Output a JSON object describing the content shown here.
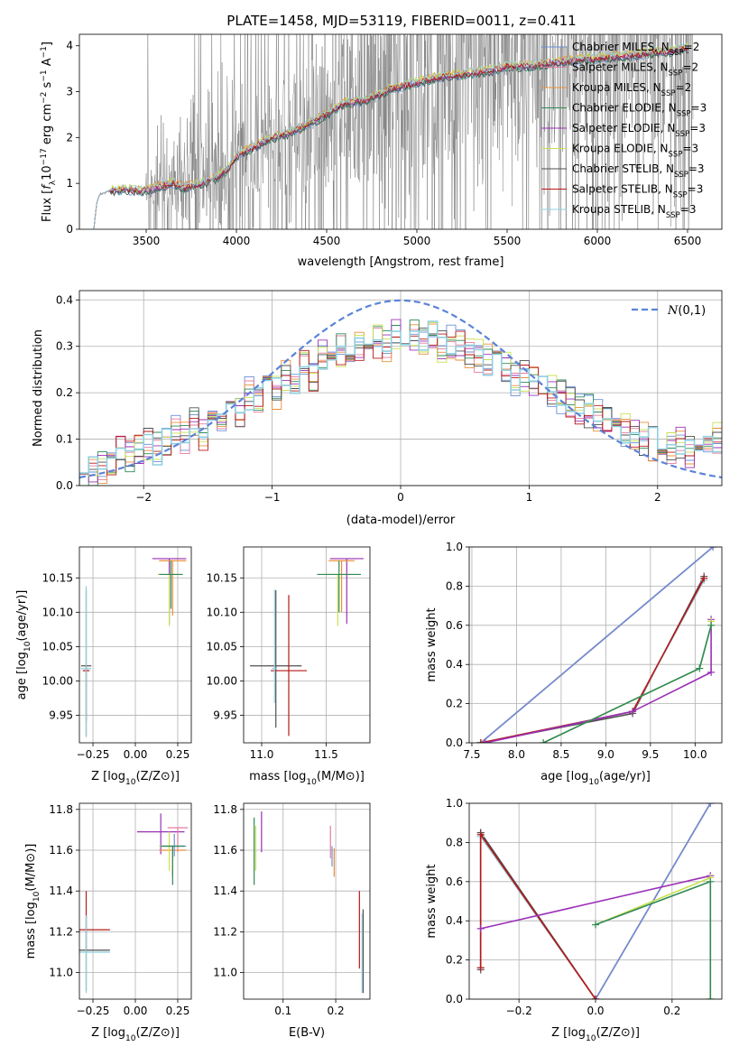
{
  "figure": {
    "title": "PLATE=1458, MJD=53119, FIBERID=0011, z=0.411"
  },
  "colors": {
    "chabrier_miles": "#6a8fd8",
    "salpeter_miles": "#e57ca0",
    "kroupa_miles": "#e8903a",
    "chabrier_elodie": "#2f8a58",
    "salpeter_elodie": "#9b30b8",
    "kroupa_elodie": "#c8e050",
    "chabrier_stelib": "#4f4f4f",
    "salpeter_stelib": "#b81818",
    "kroupa_stelib": "#90cfe0",
    "data": "#808080",
    "normal": "#5b84d8",
    "grid": "#b0b0b0"
  },
  "chart_data": [
    {
      "id": "spectrum",
      "type": "line",
      "xlabel": "wavelength [Angstrom, rest frame]",
      "ylabel_parts": [
        "Flux [",
        "f",
        "λ",
        "10",
        "−17",
        " erg cm",
        "−2",
        " s",
        "−1",
        " A",
        "−1",
        "]"
      ],
      "xlim": [
        3130,
        6690
      ],
      "ylim": [
        0,
        4.25
      ],
      "xticks": [
        3500,
        4000,
        4500,
        5000,
        5500,
        6000,
        6500
      ],
      "yticks": [
        0,
        1,
        2,
        3,
        4
      ],
      "legend_position": "top-right",
      "legend": [
        {
          "prefix": "Chabrier MILES, N",
          "sub": "SSP",
          "suffix": "=2",
          "color_key": "chabrier_miles"
        },
        {
          "prefix": "Salpeter MILES, N",
          "sub": "SSP",
          "suffix": "=2",
          "color_key": "salpeter_miles"
        },
        {
          "prefix": "Kroupa MILES, N",
          "sub": "SSP",
          "suffix": "=2",
          "color_key": "kroupa_miles"
        },
        {
          "prefix": "Chabrier ELODIE, N",
          "sub": "SSP",
          "suffix": "=3",
          "color_key": "chabrier_elodie"
        },
        {
          "prefix": "Salpeter ELODIE, N",
          "sub": "SSP",
          "suffix": "=3",
          "color_key": "salpeter_elodie"
        },
        {
          "prefix": "Kroupa ELODIE, N",
          "sub": "SSP",
          "suffix": "=3",
          "color_key": "kroupa_elodie"
        },
        {
          "prefix": "Chabrier STELIB, N",
          "sub": "SSP",
          "suffix": "=3",
          "color_key": "chabrier_stelib"
        },
        {
          "prefix": "Salpeter STELIB, N",
          "sub": "SSP",
          "suffix": "=3",
          "color_key": "salpeter_stelib"
        },
        {
          "prefix": "Kroupa STELIB, N",
          "sub": "SSP",
          "suffix": "=3",
          "color_key": "kroupa_stelib"
        }
      ],
      "model_continuum": [
        [
          3210,
          0
        ],
        [
          3225,
          0.55
        ],
        [
          3240,
          0.75
        ],
        [
          3270,
          0.8
        ],
        [
          3300,
          0.85
        ],
        [
          3350,
          0.85
        ],
        [
          3400,
          0.87
        ],
        [
          3450,
          0.83
        ],
        [
          3500,
          0.85
        ],
        [
          3550,
          0.9
        ],
        [
          3600,
          0.95
        ],
        [
          3650,
          1.02
        ],
        [
          3700,
          0.9
        ],
        [
          3750,
          0.95
        ],
        [
          3800,
          1.0
        ],
        [
          3850,
          1.05
        ],
        [
          3900,
          1.15
        ],
        [
          3950,
          1.3
        ],
        [
          4000,
          1.6
        ],
        [
          4100,
          1.8
        ],
        [
          4200,
          2.0
        ],
        [
          4300,
          2.1
        ],
        [
          4400,
          2.3
        ],
        [
          4500,
          2.5
        ],
        [
          4600,
          2.75
        ],
        [
          4700,
          2.8
        ],
        [
          4800,
          2.95
        ],
        [
          4850,
          3.05
        ],
        [
          4900,
          3.1
        ],
        [
          5000,
          3.2
        ],
        [
          5100,
          3.3
        ],
        [
          5200,
          3.35
        ],
        [
          5300,
          3.4
        ],
        [
          5400,
          3.45
        ],
        [
          5500,
          3.55
        ],
        [
          5600,
          3.55
        ],
        [
          5700,
          3.6
        ],
        [
          5800,
          3.65
        ],
        [
          5900,
          3.7
        ],
        [
          6000,
          3.72
        ],
        [
          6100,
          3.75
        ],
        [
          6200,
          3.8
        ],
        [
          6300,
          3.85
        ],
        [
          6400,
          3.88
        ],
        [
          6510,
          3.95
        ]
      ]
    },
    {
      "id": "residuals",
      "type": "line",
      "xlabel": "(data-model)/error",
      "ylabel": "Normed distribution",
      "xlim": [
        -2.5,
        2.5
      ],
      "ylim": [
        0,
        0.42
      ],
      "xticks": [
        -2,
        -1,
        0,
        1,
        2
      ],
      "yticks": [
        0.0,
        0.1,
        0.2,
        0.3,
        0.4
      ],
      "grid": true,
      "legend_position": "top-right",
      "normal_label": "N(0,1)",
      "hist_mean": [
        0.035,
        0.03,
        0.04,
        0.05,
        0.07,
        0.06,
        0.08,
        0.09,
        0.08,
        0.1,
        0.12,
        0.1,
        0.14,
        0.11,
        0.16,
        0.13,
        0.17,
        0.16,
        0.2,
        0.18,
        0.21,
        0.2,
        0.24,
        0.22,
        0.26,
        0.24,
        0.28,
        0.27,
        0.29,
        0.28,
        0.3,
        0.29,
        0.31,
        0.3,
        0.33,
        0.31,
        0.32,
        0.31,
        0.32,
        0.3,
        0.31,
        0.3,
        0.29,
        0.28,
        0.27,
        0.26,
        0.25,
        0.23,
        0.24,
        0.22,
        0.21,
        0.2,
        0.19,
        0.18,
        0.17,
        0.16,
        0.15,
        0.14,
        0.13,
        0.12,
        0.11,
        0.1,
        0.09,
        0.1,
        0.08,
        0.09,
        0.07,
        0.08,
        0.09,
        0.1
      ]
    },
    {
      "id": "age_vs_Z",
      "type": "scatter",
      "xlabel": "Z [log10(Z/Z⊙)]",
      "ylabel": "age  [log10(age/yr)]",
      "xlim": [
        -0.33,
        0.33
      ],
      "ylim": [
        9.91,
        10.195
      ],
      "xticks": [
        -0.25,
        0.0,
        0.25
      ],
      "xticklabels": [
        "−0.25",
        "0.00",
        "0.25"
      ],
      "yticks": [
        9.95,
        10.0,
        10.05,
        10.1,
        10.15
      ],
      "grid": true,
      "points": [
        {
          "color_key": "salpeter_elodie",
          "x": 0.2,
          "xerr": 0.1,
          "y": 10.178,
          "yerr_lo": 0.095,
          "yerr_hi": 0
        },
        {
          "color_key": "kroupa_miles",
          "x": 0.22,
          "xerr": 0.08,
          "y": 10.175,
          "yerr_lo": 0.08,
          "yerr_hi": 0
        },
        {
          "color_key": "kroupa_elodie",
          "x": 0.2,
          "xerr": 0.07,
          "y": 10.155,
          "yerr_lo": 0.075,
          "yerr_hi": 0
        },
        {
          "color_key": "chabrier_elodie",
          "x": 0.21,
          "xerr": 0.07,
          "y": 10.155,
          "yerr_lo": 0.05,
          "yerr_hi": 0.02
        },
        {
          "color_key": "chabrier_stelib",
          "x": -0.29,
          "xerr": 0.03,
          "y": 10.022,
          "yerr_lo": 0.08,
          "yerr_hi": 0.11
        },
        {
          "color_key": "salpeter_stelib",
          "x": -0.29,
          "xerr": 0.02,
          "y": 10.015,
          "yerr_lo": 0.095,
          "yerr_hi": 0.01
        },
        {
          "color_key": "kroupa_stelib",
          "x": -0.29,
          "xerr": 0.03,
          "y": 10.018,
          "yerr_lo": 0.1,
          "yerr_hi": 0.12
        }
      ]
    },
    {
      "id": "age_vs_mass",
      "type": "scatter",
      "xlabel": "mass [log10(M/M⊙)]",
      "ylabel": "",
      "xlim": [
        10.86,
        11.84
      ],
      "ylim": [
        9.91,
        10.195
      ],
      "xticks": [
        11.0,
        11.5
      ],
      "xticklabels": [
        "11.0",
        "11.5"
      ],
      "yticks": [
        9.95,
        10.0,
        10.05,
        10.1,
        10.15
      ],
      "grid": true,
      "points": [
        {
          "color_key": "salpeter_elodie",
          "x": 11.66,
          "xerr": 0.13,
          "y": 10.178,
          "yerr_lo": 0.095,
          "yerr_hi": 0
        },
        {
          "color_key": "kroupa_miles",
          "x": 11.62,
          "xerr": 0.1,
          "y": 10.175,
          "yerr_lo": 0.075,
          "yerr_hi": 0
        },
        {
          "color_key": "kroupa_elodie",
          "x": 11.59,
          "xerr": 0.12,
          "y": 10.155,
          "yerr_lo": 0.075,
          "yerr_hi": 0
        },
        {
          "color_key": "chabrier_elodie",
          "x": 11.6,
          "xerr": 0.17,
          "y": 10.155,
          "yerr_lo": 0.055,
          "yerr_hi": 0.02
        },
        {
          "color_key": "chabrier_stelib",
          "x": 11.11,
          "xerr": 0.2,
          "y": 10.022,
          "yerr_lo": 0.09,
          "yerr_hi": 0.11
        },
        {
          "color_key": "salpeter_stelib",
          "x": 11.21,
          "xerr": 0.14,
          "y": 10.015,
          "yerr_lo": 0.095,
          "yerr_hi": 0.11
        },
        {
          "color_key": "kroupa_stelib",
          "x": 11.1,
          "xerr": 0.02,
          "y": 10.018,
          "yerr_lo": 0.05,
          "yerr_hi": 0.115
        }
      ]
    },
    {
      "id": "weight_vs_age",
      "type": "line",
      "xlabel": "age  [log10(age/yr)]",
      "ylabel": "mass weight",
      "xlim": [
        7.47,
        10.3
      ],
      "ylim": [
        0,
        1.0
      ],
      "xticks": [
        7.5,
        8.0,
        8.5,
        9.0,
        9.5,
        10.0
      ],
      "xticklabels": [
        "7.5",
        "8.0",
        "8.5",
        "9.0",
        "9.5",
        "10.0"
      ],
      "yticks": [
        0.0,
        0.2,
        0.4,
        0.6,
        0.8,
        1.0
      ],
      "grid": true,
      "series": [
        {
          "color_key": "kroupa_miles",
          "x": [
            7.6,
            10.2
          ],
          "y": [
            0.0,
            1.0
          ]
        },
        {
          "color_key": "salpeter_miles",
          "x": [
            7.6,
            10.2
          ],
          "y": [
            0.0,
            1.0
          ]
        },
        {
          "color_key": "chabrier_miles",
          "x": [
            7.6,
            10.2
          ],
          "y": [
            0.0,
            1.0
          ]
        },
        {
          "color_key": "chabrier_stelib",
          "x": [
            7.6,
            9.3,
            10.1
          ],
          "y": [
            0.0,
            0.15,
            0.85
          ]
        },
        {
          "color_key": "kroupa_stelib",
          "x": [
            7.6,
            9.3,
            10.1
          ],
          "y": [
            0.0,
            0.16,
            0.83
          ]
        },
        {
          "color_key": "salpeter_stelib",
          "x": [
            7.6,
            9.3,
            10.1
          ],
          "y": [
            0.0,
            0.16,
            0.84
          ]
        },
        {
          "color_key": "salpeter_elodie",
          "x": [
            7.65,
            9.3,
            10.18,
            10.18
          ],
          "y": [
            0.0,
            0.16,
            0.36,
            0.63
          ]
        },
        {
          "color_key": "kroupa_elodie",
          "x": [
            8.3,
            10.05,
            10.18,
            10.18
          ],
          "y": [
            0.0,
            0.38,
            0.6,
            0.62
          ]
        },
        {
          "color_key": "chabrier_elodie",
          "x": [
            8.3,
            10.05,
            10.18
          ],
          "y": [
            0.0,
            0.38,
            0.6
          ]
        }
      ]
    },
    {
      "id": "mass_vs_Z",
      "type": "scatter",
      "xlabel": "Z [log10(Z/Z⊙)]",
      "ylabel": "mass [log10(M/M⊙)]",
      "xlim": [
        -0.33,
        0.33
      ],
      "ylim": [
        10.87,
        11.83
      ],
      "xticks": [
        -0.25,
        0.0,
        0.25
      ],
      "xticklabels": [
        "−0.25",
        "0.00",
        "0.25"
      ],
      "yticks": [
        11.0,
        11.2,
        11.4,
        11.6,
        11.8
      ],
      "grid": true,
      "points": [
        {
          "color_key": "salpeter_elodie",
          "x": 0.15,
          "xerr": 0.14,
          "y": 11.69,
          "yerr_lo": 0.11,
          "yerr_hi": 0.09
        },
        {
          "color_key": "salpeter_miles",
          "x": 0.25,
          "xerr": 0.06,
          "y": 11.71,
          "yerr_lo": 0.12,
          "yerr_hi": 0
        },
        {
          "color_key": "kroupa_miles",
          "x": 0.22,
          "xerr": 0.08,
          "y": 11.6,
          "yerr_lo": 0.13,
          "yerr_hi": 0.02
        },
        {
          "color_key": "kroupa_elodie",
          "x": 0.2,
          "xerr": 0.06,
          "y": 11.62,
          "yerr_lo": 0.12,
          "yerr_hi": 0.07
        },
        {
          "color_key": "chabrier_miles",
          "x": 0.23,
          "xerr": 0.07,
          "y": 11.62,
          "yerr_lo": 0.05,
          "yerr_hi": 0.06
        },
        {
          "color_key": "chabrier_elodie",
          "x": 0.22,
          "xerr": 0.07,
          "y": 11.62,
          "yerr_lo": 0.19,
          "yerr_hi": 0
        },
        {
          "color_key": "salpeter_stelib",
          "x": -0.29,
          "xerr": 0.14,
          "y": 11.21,
          "yerr_lo": 0.1,
          "yerr_hi": 0.19
        },
        {
          "color_key": "chabrier_stelib",
          "x": -0.29,
          "xerr": 0.14,
          "y": 11.11,
          "yerr_lo": 0.2,
          "yerr_hi": 0.17
        },
        {
          "color_key": "kroupa_stelib",
          "x": -0.29,
          "xerr": 0.14,
          "y": 11.1,
          "yerr_lo": 0.2,
          "yerr_hi": 0.18
        }
      ]
    },
    {
      "id": "mass_vs_ebv",
      "type": "scatter",
      "xlabel": "E(B-V)",
      "ylabel": "",
      "xlim": [
        0.025,
        0.265
      ],
      "ylim": [
        10.87,
        11.83
      ],
      "xticks": [
        0.1,
        0.2
      ],
      "xticklabels": [
        "0.1",
        "0.2"
      ],
      "yticks": [
        11.0,
        11.2,
        11.4,
        11.6,
        11.8
      ],
      "grid": true,
      "points": [
        {
          "color_key": "salpeter_elodie",
          "x": 0.059,
          "y": 11.69,
          "yerr_lo": 0.1,
          "yerr_hi": 0.1
        },
        {
          "color_key": "chabrier_elodie",
          "x": 0.045,
          "y": 11.62,
          "yerr_lo": 0.19,
          "yerr_hi": 0.14
        },
        {
          "color_key": "kroupa_elodie",
          "x": 0.048,
          "y": 11.6,
          "yerr_lo": 0.1,
          "yerr_hi": 0.12
        },
        {
          "color_key": "salpeter_miles",
          "x": 0.19,
          "y": 11.62,
          "yerr_lo": 0.06,
          "yerr_hi": 0.1
        },
        {
          "color_key": "kroupa_miles",
          "x": 0.197,
          "y": 11.56,
          "yerr_lo": 0.09,
          "yerr_hi": 0.05
        },
        {
          "color_key": "chabrier_miles",
          "x": 0.193,
          "y": 11.57,
          "yerr_lo": 0.05,
          "yerr_hi": 0.05
        },
        {
          "color_key": "salpeter_stelib",
          "x": 0.245,
          "y": 11.21,
          "yerr_lo": 0.19,
          "yerr_hi": 0.19
        },
        {
          "color_key": "chabrier_stelib",
          "x": 0.252,
          "y": 11.11,
          "yerr_lo": 0.21,
          "yerr_hi": 0.2
        },
        {
          "color_key": "kroupa_stelib",
          "x": 0.25,
          "y": 11.1,
          "yerr_lo": 0.2,
          "yerr_hi": 0.19
        }
      ]
    },
    {
      "id": "weight_vs_Z",
      "type": "line",
      "xlabel": "Z [log10(Z/Z⊙)]",
      "ylabel": "mass weight",
      "xlim": [
        -0.33,
        0.33
      ],
      "ylim": [
        0,
        1.0
      ],
      "xticks": [
        -0.2,
        0.0,
        0.2
      ],
      "xticklabels": [
        "−0.2",
        "0.0",
        "0.2"
      ],
      "yticks": [
        0.0,
        0.2,
        0.4,
        0.6,
        0.8,
        1.0
      ],
      "grid": true,
      "series": [
        {
          "color_key": "kroupa_miles",
          "x": [
            0.0,
            0.3
          ],
          "y": [
            0.0,
            1.0
          ]
        },
        {
          "color_key": "salpeter_miles",
          "x": [
            0.0,
            0.3
          ],
          "y": [
            0.0,
            1.0
          ]
        },
        {
          "color_key": "chabrier_miles",
          "x": [
            0.0,
            0.3
          ],
          "y": [
            0.0,
            1.0
          ]
        },
        {
          "color_key": "chabrier_stelib",
          "x": [
            -0.3,
            -0.3,
            -0.3,
            0.0
          ],
          "y": [
            0.15,
            0.85,
            0.85,
            0.0
          ]
        },
        {
          "color_key": "kroupa_stelib",
          "x": [
            -0.3,
            -0.3,
            -0.3,
            0.0
          ],
          "y": [
            0.16,
            0.83,
            0.83,
            0.0
          ]
        },
        {
          "color_key": "salpeter_stelib",
          "x": [
            -0.3,
            -0.3,
            0.0
          ],
          "y": [
            0.16,
            0.84,
            0.0
          ]
        },
        {
          "color_key": "salpeter_elodie",
          "x": [
            -0.3,
            0.3
          ],
          "y": [
            0.36,
            0.63
          ]
        },
        {
          "color_key": "kroupa_elodie",
          "x": [
            0.0,
            0.3,
            0.3
          ],
          "y": [
            0.38,
            0.62,
            0.0
          ]
        },
        {
          "color_key": "chabrier_elodie",
          "x": [
            0.0,
            0.3,
            0.3
          ],
          "y": [
            0.38,
            0.6,
            0.0
          ]
        }
      ]
    }
  ]
}
